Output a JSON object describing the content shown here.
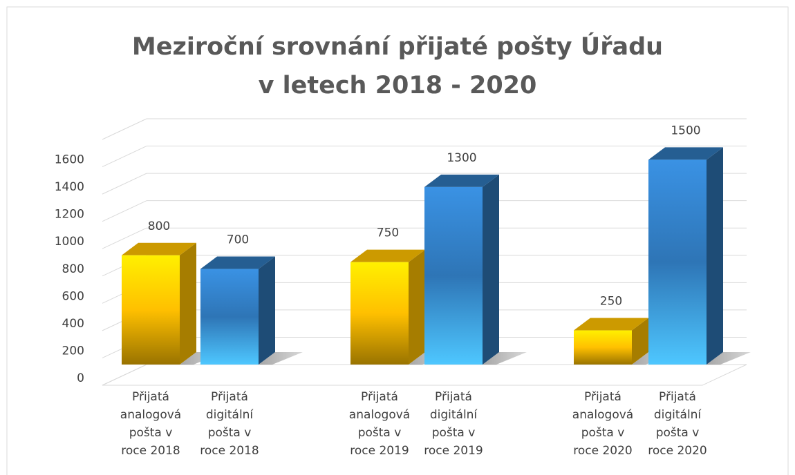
{
  "chart_data": {
    "type": "bar3d",
    "title": "Meziroční srovnání přijaté pošty Úřadu\nv letech 2018 - 2020",
    "categories": [
      "Přijatá\nanalogová\npošta v\nroce 2018",
      "Přijatá\ndigitální\npošta v\nroce 2018",
      "Přijatá\nanalogová\npošta v\nroce 2019",
      "Přijatá\ndigitální\npošta v\nroce 2019",
      "Přijatá\nanalogová\npošta v\nroce 2020",
      "Přijatá\ndigitální\npošta v\nroce 2020"
    ],
    "values": [
      800,
      700,
      750,
      1300,
      250,
      1500
    ],
    "colors": [
      "#ffc000",
      "#2e75b6",
      "#ffc000",
      "#2e75b6",
      "#ffc000",
      "#2e75b6"
    ],
    "ylim": [
      0,
      1800
    ],
    "yticks": [
      0,
      200,
      400,
      600,
      800,
      1000,
      1200,
      1400,
      1600
    ],
    "grid": true
  }
}
